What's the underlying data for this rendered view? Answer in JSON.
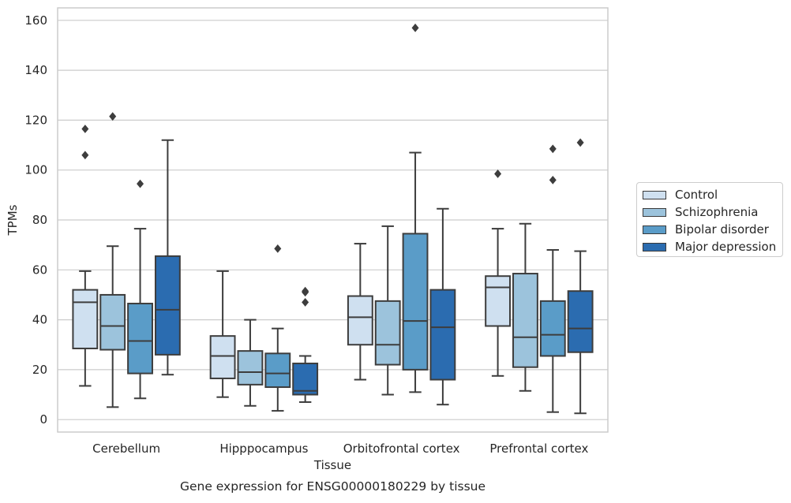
{
  "chart_data": {
    "type": "box",
    "title": "Gene expression for ENSG00000180229 by tissue",
    "xlabel": "Tissue",
    "ylabel": "TPMs",
    "ylim": [
      -5,
      165
    ],
    "yticks": [
      0,
      20,
      40,
      60,
      80,
      100,
      120,
      140,
      160
    ],
    "grid": true,
    "legend_position": "right",
    "categories": [
      "Cerebellum",
      "Hipppocampus",
      "Orbitofrontal cortex",
      "Prefrontal cortex"
    ],
    "series": [
      {
        "name": "Control",
        "color": "#cfe0f0",
        "boxes": [
          {
            "min": 13.5,
            "q1": 28.5,
            "median": 47,
            "q3": 52,
            "max": 59.5,
            "outliers": [
              106,
              116.5
            ]
          },
          {
            "min": 9,
            "q1": 16.5,
            "median": 25.5,
            "q3": 33.5,
            "max": 59.5,
            "outliers": []
          },
          {
            "min": 16,
            "q1": 30,
            "median": 41,
            "q3": 49.5,
            "max": 70.5,
            "outliers": []
          },
          {
            "min": 17.5,
            "q1": 37.5,
            "median": 53,
            "q3": 57.5,
            "max": 76.5,
            "outliers": [
              98.5
            ]
          }
        ]
      },
      {
        "name": "Schizophrenia",
        "color": "#9cc3dc",
        "boxes": [
          {
            "min": 5,
            "q1": 28,
            "median": 37.5,
            "q3": 50,
            "max": 69.5,
            "outliers": [
              121.5
            ]
          },
          {
            "min": 5.5,
            "q1": 14,
            "median": 19,
            "q3": 27.5,
            "max": 40,
            "outliers": []
          },
          {
            "min": 10,
            "q1": 22,
            "median": 30,
            "q3": 47.5,
            "max": 77.5,
            "outliers": []
          },
          {
            "min": 11.5,
            "q1": 21,
            "median": 33,
            "q3": 58.5,
            "max": 78.5,
            "outliers": []
          }
        ]
      },
      {
        "name": "Bipolar disorder",
        "color": "#5a9cc8",
        "boxes": [
          {
            "min": 8.5,
            "q1": 18.5,
            "median": 31.5,
            "q3": 46.5,
            "max": 76.5,
            "outliers": [
              94.5
            ]
          },
          {
            "min": 3.5,
            "q1": 13,
            "median": 18.5,
            "q3": 26.5,
            "max": 36.5,
            "outliers": [
              68.5
            ]
          },
          {
            "min": 11,
            "q1": 20,
            "median": 39.5,
            "q3": 74.5,
            "max": 107,
            "outliers": [
              157
            ]
          },
          {
            "min": 3,
            "q1": 25.5,
            "median": 34,
            "q3": 47.5,
            "max": 68,
            "outliers": [
              96,
              108.5
            ]
          }
        ]
      },
      {
        "name": "Major depression",
        "color": "#2b6cb0",
        "boxes": [
          {
            "min": 18,
            "q1": 26,
            "median": 44,
            "q3": 65.5,
            "max": 112,
            "outliers": []
          },
          {
            "min": 7,
            "q1": 10,
            "median": 11.5,
            "q3": 22.5,
            "max": 25.5,
            "outliers": [
              47,
              51,
              51.5
            ]
          },
          {
            "min": 6,
            "q1": 16,
            "median": 37,
            "q3": 52,
            "max": 84.5,
            "outliers": []
          },
          {
            "min": 2.5,
            "q1": 27,
            "median": 36.5,
            "q3": 51.5,
            "max": 67.5,
            "outliers": [
              111
            ]
          }
        ]
      }
    ]
  }
}
